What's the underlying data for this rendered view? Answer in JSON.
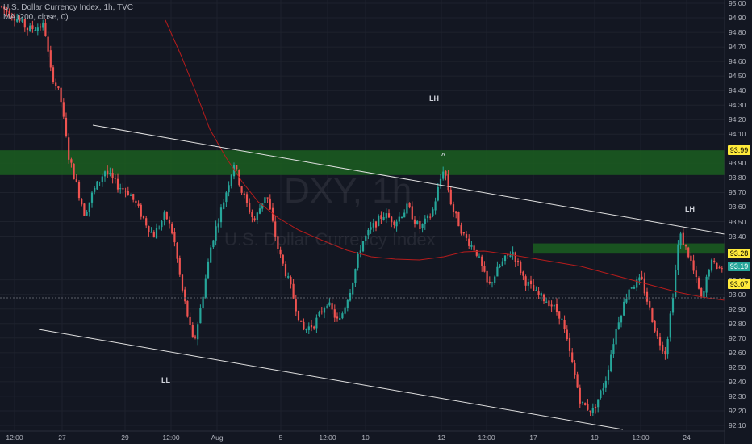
{
  "header": {
    "title": "U.S. Dollar Currency Index, 1h, TVC",
    "indicator": "MA (200, close, 0)"
  },
  "watermark": {
    "symbol": "DXY, 1h",
    "name": "U.S. Dollar Currency Index"
  },
  "annotations": {
    "lh_top": "LH",
    "lh_right": "LH",
    "ll": "LL",
    "arrow": "^"
  },
  "price_axis": {
    "labels": [
      "95.00",
      "94.90",
      "94.80",
      "94.70",
      "94.60",
      "94.50",
      "94.40",
      "94.30",
      "94.20",
      "94.10",
      "93.90",
      "93.80",
      "93.70",
      "93.60",
      "93.50",
      "93.40",
      "93.10",
      "93.00",
      "92.90",
      "92.80",
      "92.70",
      "92.60",
      "92.50",
      "92.40",
      "92.30",
      "92.20",
      "92.10"
    ],
    "tags": [
      {
        "label": "93.99",
        "bg": "#ffeb3b",
        "fg": "#000000"
      },
      {
        "label": "93.28",
        "bg": "#ffeb3b",
        "fg": "#000000"
      },
      {
        "label": "93.19",
        "bg": "#26a69a",
        "fg": "#ffffff"
      },
      {
        "label": "93.07",
        "bg": "#ffeb3b",
        "fg": "#000000"
      }
    ]
  },
  "time_axis": {
    "labels": [
      "12:00",
      "27",
      "29",
      "12:00",
      "Aug",
      "5",
      "12:00",
      "10",
      "12",
      "12:00",
      "17",
      "19",
      "12:00",
      "24"
    ]
  },
  "colors": {
    "background": "#131722",
    "up": "#26a69a",
    "down": "#ef5350",
    "ma": "#b71c1c",
    "zone": "#1b5e20",
    "trendline": "#e0e0e0"
  },
  "chart_data": {
    "type": "candlestick",
    "ylim": [
      92.07,
      95.02
    ],
    "ma_period": 200,
    "zones": [
      {
        "from": 93.82,
        "to": 93.99
      },
      {
        "from": 93.28,
        "to": 93.35
      }
    ],
    "current_price": 93.19
  }
}
